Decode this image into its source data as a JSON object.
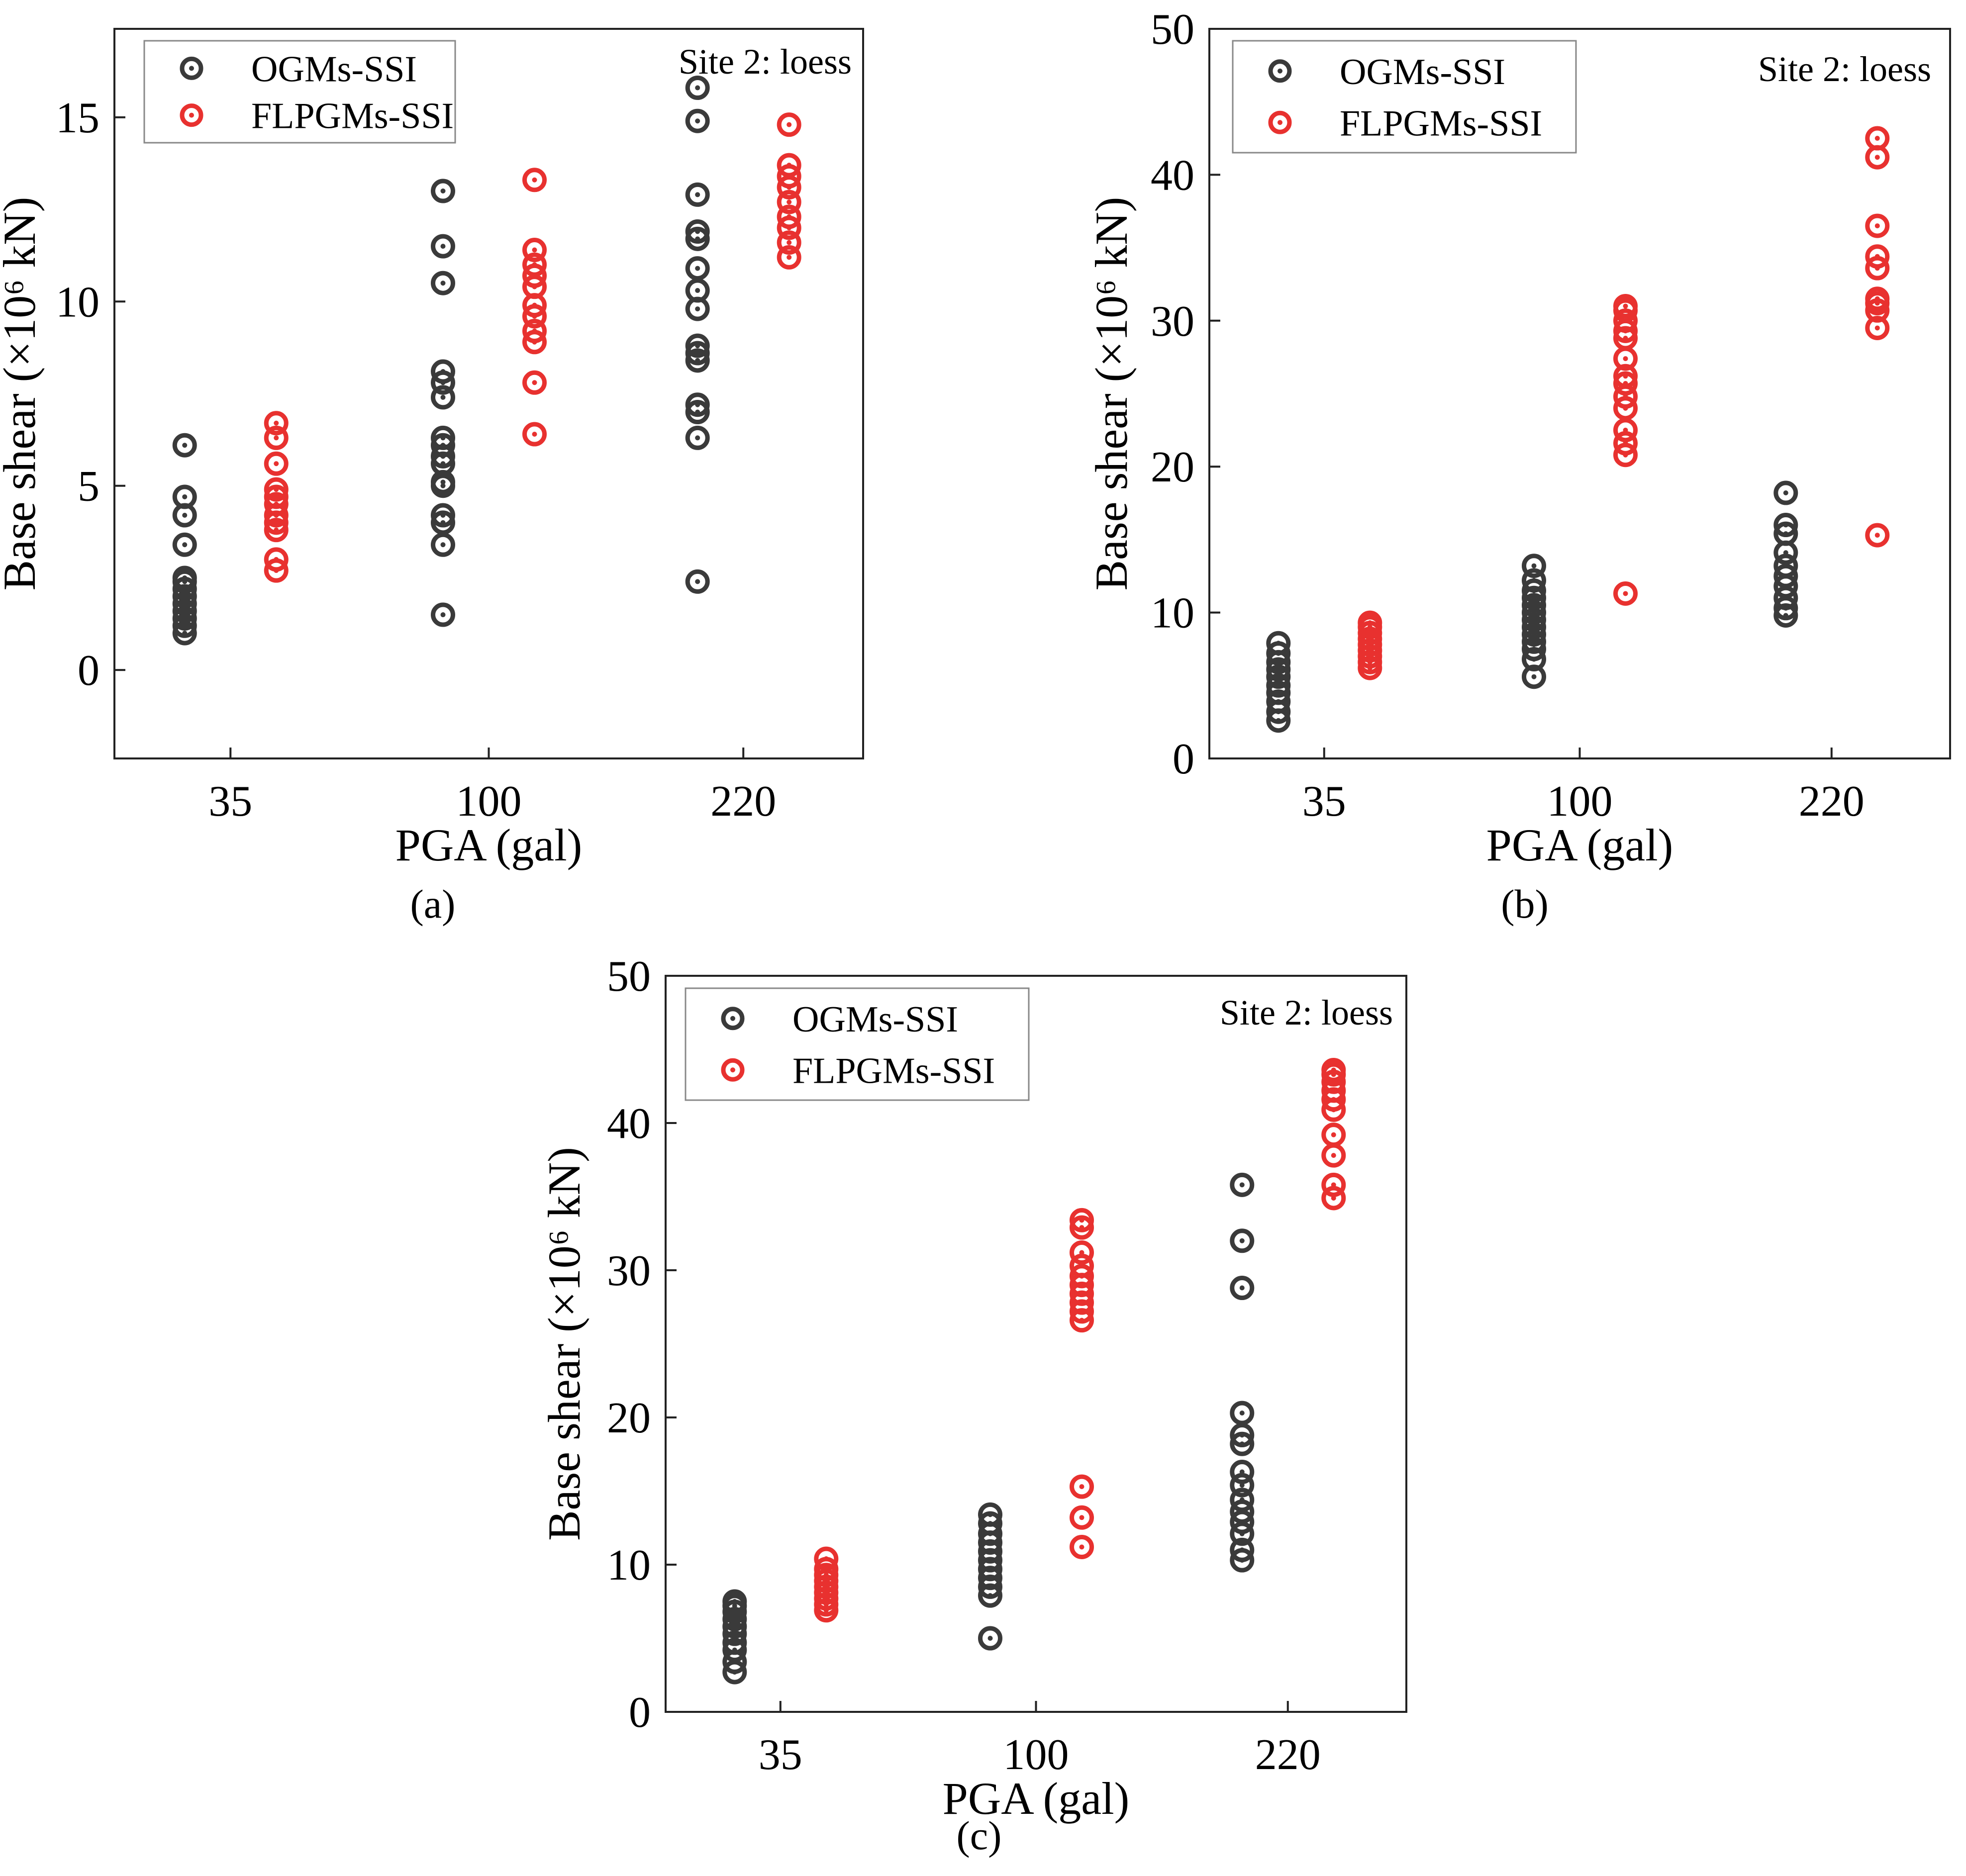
{
  "colors": {
    "ogm": "#3a3a3a",
    "flpgm": "#e8312f"
  },
  "chart_data": [
    {
      "type": "scatter",
      "panel": "a",
      "caption": "(a)",
      "annotation": "Site 2: loess",
      "xlabel": "PGA (gal)",
      "ylabel": "Base shear (×10⁶ kN)",
      "categories": [
        "35",
        "100",
        "220"
      ],
      "ylim": [
        -2.4,
        17.4
      ],
      "yticks": [
        0,
        5,
        10,
        15
      ],
      "grid": false,
      "legend_position": "top-left",
      "series": [
        {
          "name": "OGMs-SSI",
          "color": "#3a3a3a",
          "offset": -0.1,
          "values": [
            [
              1.0,
              1.2,
              1.4,
              1.6,
              1.8,
              2.0,
              2.2,
              2.4,
              2.5,
              3.4,
              4.2,
              4.7,
              6.1
            ],
            [
              1.5,
              3.4,
              4.0,
              4.2,
              5.0,
              5.1,
              5.6,
              5.8,
              6.1,
              6.3,
              7.4,
              7.8,
              8.1,
              10.5,
              11.5,
              13.0
            ],
            [
              2.4,
              6.3,
              7.0,
              7.2,
              8.4,
              8.6,
              8.8,
              9.8,
              10.3,
              10.9,
              11.7,
              11.9,
              12.9,
              14.9,
              15.8
            ]
          ]
        },
        {
          "name": "FLPGMs-SSI",
          "color": "#e8312f",
          "offset": 0.1,
          "values": [
            [
              2.7,
              3.0,
              3.8,
              4.0,
              4.2,
              4.5,
              4.7,
              4.9,
              5.6,
              6.3,
              6.7
            ],
            [
              6.4,
              7.8,
              8.9,
              9.2,
              9.6,
              9.9,
              10.4,
              10.7,
              11.0,
              11.4,
              13.3
            ],
            [
              11.2,
              11.6,
              12.0,
              12.3,
              12.7,
              13.1,
              13.4,
              13.7,
              14.8
            ]
          ]
        }
      ]
    },
    {
      "type": "scatter",
      "panel": "b",
      "caption": "(b)",
      "annotation": "Site 2: loess",
      "xlabel": "PGA (gal)",
      "ylabel": "Base shear (×10⁶ kN)",
      "categories": [
        "35",
        "100",
        "220"
      ],
      "ylim": [
        0,
        50
      ],
      "yticks": [
        0,
        10,
        20,
        30,
        40,
        50
      ],
      "grid": false,
      "legend_position": "top-left",
      "series": [
        {
          "name": "OGMs-SSI",
          "color": "#3a3a3a",
          "offset": -0.1,
          "values": [
            [
              2.6,
              3.2,
              3.9,
              4.5,
              5.0,
              5.6,
              6.1,
              6.6,
              7.2,
              7.9
            ],
            [
              5.6,
              6.8,
              7.5,
              8.0,
              8.5,
              9.0,
              9.5,
              10.0,
              10.5,
              11.0,
              11.5,
              12.2,
              13.2
            ],
            [
              9.8,
              10.3,
              11.0,
              11.8,
              12.5,
              13.2,
              14.1,
              15.4,
              16.0,
              18.2
            ]
          ]
        },
        {
          "name": "FLPGMs-SSI",
          "color": "#e8312f",
          "offset": 0.1,
          "values": [
            [
              6.2,
              6.6,
              7.0,
              7.4,
              7.8,
              8.2,
              8.6,
              9.0,
              9.3
            ],
            [
              11.3,
              20.8,
              21.6,
              22.5,
              24.0,
              24.8,
              25.7,
              26.2,
              27.4,
              28.8,
              29.3,
              30.0,
              30.7,
              31.0
            ],
            [
              15.3,
              29.5,
              30.7,
              31.2,
              31.5,
              33.6,
              34.4,
              36.5,
              41.2,
              42.5
            ]
          ]
        }
      ]
    },
    {
      "type": "scatter",
      "panel": "c",
      "caption": "(c)",
      "annotation": "Site 2: loess",
      "xlabel": "PGA (gal)",
      "ylabel": "Base shear (×10⁶ kN)",
      "categories": [
        "35",
        "100",
        "220"
      ],
      "ylim": [
        0,
        50
      ],
      "yticks": [
        0,
        10,
        20,
        30,
        40,
        50
      ],
      "grid": false,
      "legend_position": "top-left",
      "series": [
        {
          "name": "OGMs-SSI",
          "color": "#3a3a3a",
          "offset": -0.1,
          "values": [
            [
              2.7,
              3.4,
              4.2,
              4.7,
              5.3,
              5.8,
              6.3,
              6.8,
              7.2,
              7.5
            ],
            [
              5.0,
              7.9,
              8.5,
              9.1,
              9.7,
              10.3,
              10.9,
              11.5,
              12.1,
              12.8,
              13.4
            ],
            [
              10.3,
              11.0,
              12.1,
              12.9,
              13.6,
              14.4,
              15.4,
              16.3,
              18.2,
              18.8,
              20.3,
              28.8,
              32.0,
              35.8
            ]
          ]
        },
        {
          "name": "FLPGMs-SSI",
          "color": "#e8312f",
          "offset": 0.1,
          "values": [
            [
              6.9,
              7.3,
              7.7,
              8.1,
              8.5,
              8.9,
              9.3,
              9.7,
              10.4
            ],
            [
              11.2,
              13.2,
              15.3,
              26.6,
              27.2,
              27.8,
              28.4,
              29.0,
              29.6,
              30.3,
              31.2,
              32.9,
              33.4
            ],
            [
              34.9,
              35.8,
              37.8,
              39.2,
              40.9,
              41.6,
              42.2,
              42.8,
              43.3,
              43.6
            ]
          ]
        }
      ]
    }
  ]
}
